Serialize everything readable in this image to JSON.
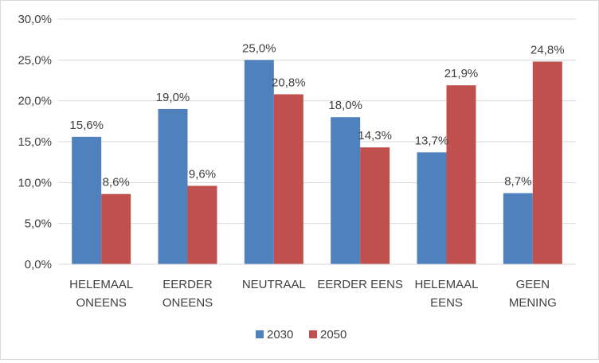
{
  "chart_data": {
    "type": "bar",
    "categories": [
      [
        "HELEMAAL",
        "ONEENS"
      ],
      [
        "EERDER",
        "ONEENS"
      ],
      [
        "NEUTRAAL"
      ],
      [
        "EERDER EENS"
      ],
      [
        "HELEMAAL",
        "EENS"
      ],
      [
        "GEEN",
        "MENING"
      ]
    ],
    "series": [
      {
        "name": "2030",
        "color": "#4f81bd",
        "values": [
          15.6,
          19.0,
          25.0,
          18.0,
          13.7,
          8.7
        ],
        "labels": [
          "15,6%",
          "19,0%",
          "25,0%",
          "18,0%",
          "13,7%",
          "8,7%"
        ]
      },
      {
        "name": "2050",
        "color": "#c0504d",
        "values": [
          8.6,
          9.6,
          20.8,
          14.3,
          21.9,
          24.8
        ],
        "labels": [
          "8,6%",
          "9,6%",
          "20,8%",
          "14,3%",
          "21,9%",
          "24,8%"
        ]
      }
    ],
    "ylim": [
      0,
      30
    ],
    "yticks": [
      0,
      5,
      10,
      15,
      20,
      25,
      30
    ],
    "ytick_labels": [
      "0,0%",
      "5,0%",
      "10,0%",
      "15,0%",
      "20,0%",
      "25,0%",
      "30,0%"
    ],
    "grid": true,
    "legend": "bottom"
  }
}
